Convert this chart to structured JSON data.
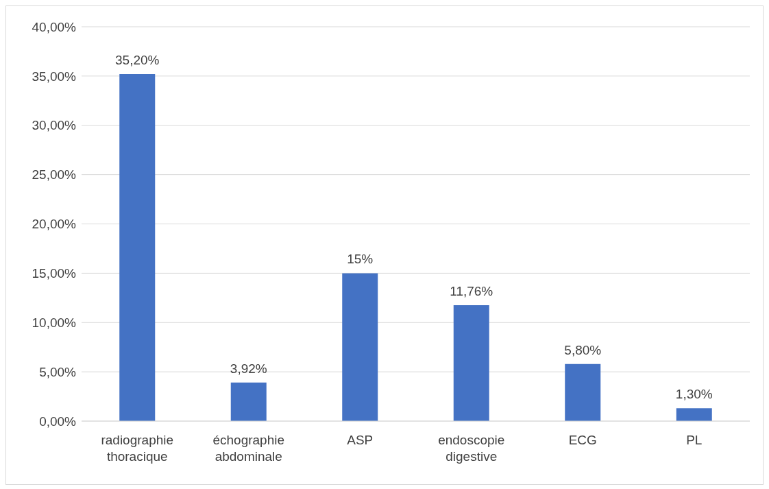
{
  "chart_data": {
    "type": "bar",
    "categories": [
      "radiographie thoracique",
      "échographie abdominale",
      "ASP",
      "endoscopie digestive",
      "ECG",
      "PL"
    ],
    "values": [
      35.2,
      3.92,
      15,
      11.76,
      5.8,
      1.3
    ],
    "value_labels": [
      "35,20%",
      "3,92%",
      "15%",
      "11,76%",
      "5,80%",
      "1,30%"
    ],
    "color": "#4472c4",
    "ylim": [
      0,
      40
    ],
    "yticks": [
      {
        "value": 0,
        "label": "0,00%"
      },
      {
        "value": 5,
        "label": "5,00%"
      },
      {
        "value": 10,
        "label": "10,00%"
      },
      {
        "value": 15,
        "label": "15,00%"
      },
      {
        "value": 20,
        "label": "20,00%"
      },
      {
        "value": 25,
        "label": "25,00%"
      },
      {
        "value": 30,
        "label": "30,00%"
      },
      {
        "value": 35,
        "label": "35,00%"
      },
      {
        "value": 40,
        "label": "40,00%"
      }
    ],
    "grid": "y"
  }
}
